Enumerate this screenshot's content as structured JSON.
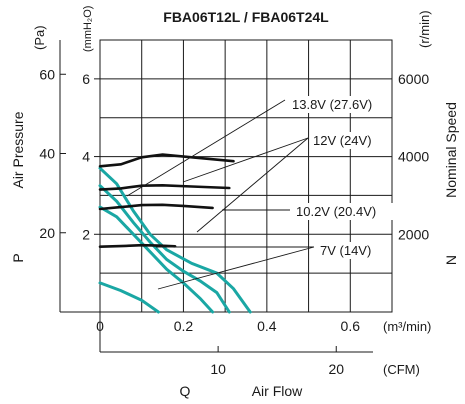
{
  "chart_data": {
    "type": "line",
    "title": "FBA06T12L / FBA06T24L",
    "left_axis_unit_pa": "(Pa)",
    "left_axis_unit_mmh2o": "(mmH₂O)",
    "left_axis_label": "Air Pressure",
    "left_axis_symbol": "P",
    "right_axis_unit": "(r/min)",
    "right_axis_label": "Nominal Speed",
    "right_axis_symbol": "N",
    "x_unit_m3": "(m³/min)",
    "x_unit_cfm": "(CFM)",
    "x_label": "Air Flow",
    "x_symbol": "Q",
    "pa_ticks": [
      "60",
      "40",
      "20"
    ],
    "mmh2o_ticks": [
      "6",
      "4",
      "2"
    ],
    "rpm_ticks": [
      "6000",
      "4000",
      "2000"
    ],
    "m3_ticks": [
      "0",
      "0.2",
      "0.4",
      "0.6"
    ],
    "cfm_ticks": [
      "10",
      "20"
    ],
    "xlim_m3min": [
      0,
      0.7
    ],
    "ylim_mmh2o": [
      0,
      7
    ],
    "ylim_rpm": [
      0,
      7000
    ],
    "grid": true,
    "colors": {
      "pressure_curves": "#1aa7a4",
      "speed_curves": "#111111"
    },
    "voltage_labels": [
      "13.8V (27.6V)",
      "12V (24V)",
      "10.2V (20.4V)",
      "7V (14V)"
    ],
    "speed_curves": [
      {
        "name": "13.8V (27.6V)",
        "points": [
          [
            0,
            3750
          ],
          [
            0.05,
            3800
          ],
          [
            0.1,
            3980
          ],
          [
            0.15,
            4050
          ],
          [
            0.22,
            3980
          ],
          [
            0.32,
            3880
          ]
        ]
      },
      {
        "name": "12V (24V)",
        "points": [
          [
            0,
            3150
          ],
          [
            0.05,
            3180
          ],
          [
            0.1,
            3250
          ],
          [
            0.15,
            3260
          ],
          [
            0.22,
            3230
          ],
          [
            0.31,
            3190
          ]
        ]
      },
      {
        "name": "10.2V (20.4V)",
        "points": [
          [
            0,
            2650
          ],
          [
            0.05,
            2700
          ],
          [
            0.1,
            2750
          ],
          [
            0.15,
            2760
          ],
          [
            0.2,
            2730
          ],
          [
            0.27,
            2680
          ]
        ]
      },
      {
        "name": "7V (14V)",
        "points": [
          [
            0,
            1680
          ],
          [
            0.03,
            1690
          ],
          [
            0.06,
            1700
          ],
          [
            0.1,
            1720
          ],
          [
            0.14,
            1710
          ],
          [
            0.18,
            1690
          ]
        ]
      }
    ],
    "pressure_curves": [
      {
        "name": "13.8V (27.6V)",
        "points": [
          [
            0,
            3.7
          ],
          [
            0.04,
            3.3
          ],
          [
            0.08,
            2.6
          ],
          [
            0.12,
            2.0
          ],
          [
            0.16,
            1.6
          ],
          [
            0.22,
            1.25
          ],
          [
            0.28,
            1.0
          ],
          [
            0.32,
            0.6
          ],
          [
            0.36,
            0.0
          ]
        ]
      },
      {
        "name": "12V (24V)",
        "points": [
          [
            0,
            3.25
          ],
          [
            0.04,
            2.85
          ],
          [
            0.08,
            2.3
          ],
          [
            0.12,
            1.8
          ],
          [
            0.16,
            1.35
          ],
          [
            0.2,
            1.05
          ],
          [
            0.24,
            0.8
          ],
          [
            0.28,
            0.5
          ],
          [
            0.31,
            0.0
          ]
        ]
      },
      {
        "name": "10.2V (20.4V)",
        "points": [
          [
            0,
            2.7
          ],
          [
            0.04,
            2.45
          ],
          [
            0.08,
            2.0
          ],
          [
            0.12,
            1.55
          ],
          [
            0.16,
            1.1
          ],
          [
            0.2,
            0.75
          ],
          [
            0.24,
            0.35
          ],
          [
            0.27,
            0.0
          ]
        ]
      },
      {
        "name": "7V (14V)",
        "points": [
          [
            0,
            0.75
          ],
          [
            0.05,
            0.55
          ],
          [
            0.1,
            0.3
          ],
          [
            0.14,
            0.0
          ]
        ]
      }
    ]
  }
}
